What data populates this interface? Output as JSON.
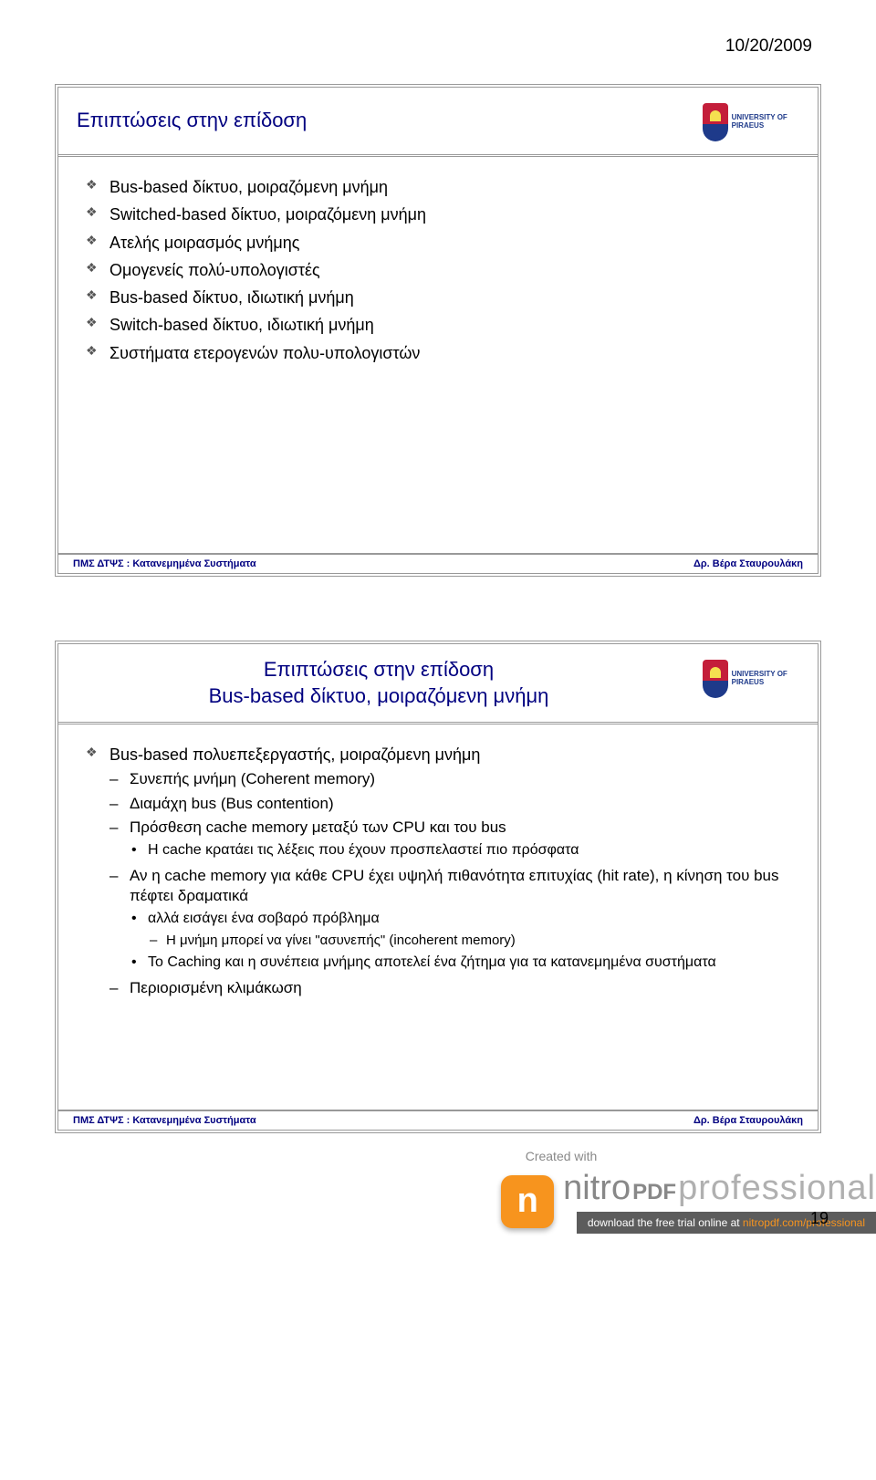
{
  "date": "10/20/2009",
  "logo_text": "UNIVERSITY OF PIRAEUS",
  "slide1": {
    "title": "Επιπτώσεις στην επίδοση",
    "bullets": [
      "Bus-based δίκτυο, μοιραζόμενη μνήμη",
      "Switched-based δίκτυο, μοιραζόμενη μνήμη",
      "Ατελής μοιρασμός μνήμης",
      "Ομογενείς πολύ-υπολογιστές",
      "Bus-based δίκτυο, ιδιωτική μνήμη",
      "Switch-based δίκτυο, ιδιωτική μνήμη",
      "Συστήματα ετερογενών πολυ-υπολογιστών"
    ],
    "footer_left": "ΠΜΣ ΔΤΨΣ : Κατανεμημένα Συστήματα",
    "footer_right": "Δρ. Βέρα Σταυρουλάκη"
  },
  "slide2": {
    "title_l1": "Επιπτώσεις στην επίδοση",
    "title_l2": "Bus-based δίκτυο, μοιραζόμενη μνήμη",
    "b1": "Bus-based πολυεπεξεργαστής, μοιραζόμενη μνήμη",
    "b1_s1": "Συνεπής μνήμη (Coherent memory)",
    "b1_s2": "Διαμάχη bus (Bus contention)",
    "b1_s3": "Πρόσθεση cache memory μεταξύ των CPU και του bus",
    "b1_s3_1": "Η cache κρατάει τις λέξεις που έχουν προσπελαστεί πιο πρόσφατα",
    "b1_s4": "Αν η cache memory για κάθε CPU έχει υψηλή πιθανότητα επιτυχίας (hit rate), η κίνηση του bus πέφτει δραματικά",
    "b1_s4_1": "αλλά εισάγει ένα σοβαρό πρόβλημα",
    "b1_s4_1_1": "Η μνήμη μπορεί να γίνει \"ασυνεπής\" (incoherent memory)",
    "b1_s4_2": "Το Caching και η συνέπεια μνήμης αποτελεί ένα ζήτημα για τα κατανεμημένα συστήματα",
    "b1_s5": "Περιορισμένη κλιμάκωση",
    "footer_left": "ΠΜΣ ΔΤΨΣ : Κατανεμημένα Συστήματα",
    "footer_right": "Δρ. Βέρα Σταυρουλάκη"
  },
  "watermark": {
    "created": "Created with",
    "brand1": "nitro",
    "brand2": "PDF",
    "brand3": "professional",
    "sub_pre": "download the free trial online at ",
    "sub_hl": "nitropdf.com/professional"
  },
  "page_number": "19"
}
